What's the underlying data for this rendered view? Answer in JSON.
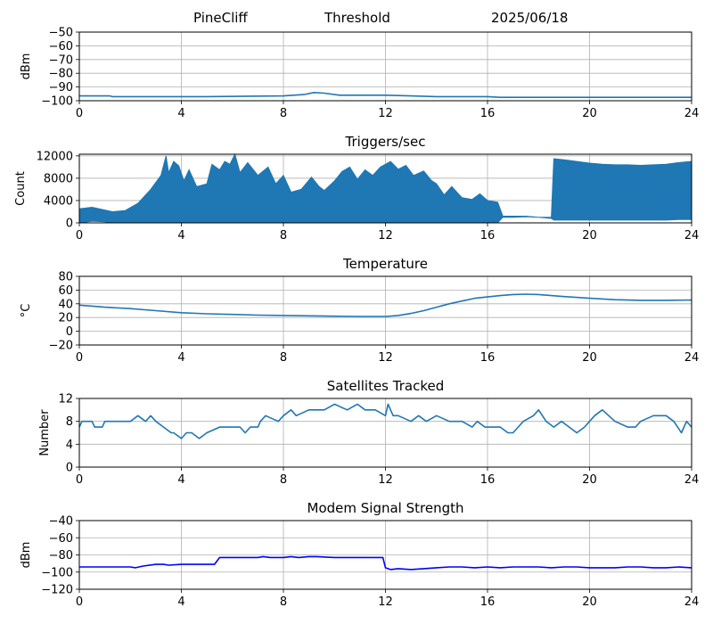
{
  "header": {
    "station": "PineCliff",
    "mode": "Threshold",
    "date": "2025/06/18"
  },
  "chart_data": [
    {
      "id": "threshold",
      "type": "line",
      "title": "",
      "xlabel": "",
      "ylabel": "dBm",
      "xlim": [
        0,
        24
      ],
      "ylim": [
        -100,
        -50
      ],
      "xticks": [
        "0",
        "4",
        "8",
        "12",
        "16",
        "20",
        "24"
      ],
      "yticks": [
        "−50",
        "−60",
        "−70",
        "−80",
        "−90",
        "−100"
      ],
      "grid": true,
      "color": "#1f77b4",
      "series": [
        {
          "x": [
            0,
            1.2,
            1.3,
            4,
            5,
            8,
            8.8,
            9.2,
            9.6,
            10.2,
            11,
            12,
            13,
            14,
            15,
            16,
            16.5,
            18.5,
            20,
            22,
            24
          ],
          "y": [
            -96.5,
            -96.5,
            -97,
            -97,
            -97,
            -96.5,
            -95.5,
            -94,
            -94.5,
            -96,
            -96,
            -96,
            -96.5,
            -97,
            -97,
            -97,
            -97.5,
            -97.5,
            -97.5,
            -97.5,
            -97.5
          ]
        }
      ]
    },
    {
      "id": "triggers",
      "type": "line",
      "title": "Triggers/sec",
      "xlabel": "",
      "ylabel": "Count",
      "xlim": [
        0,
        24
      ],
      "ylim": [
        0,
        12300
      ],
      "xticks": [
        "0",
        "4",
        "8",
        "12",
        "16",
        "20",
        "24"
      ],
      "yticks": [
        "0",
        "4000",
        "8000",
        "12000"
      ],
      "grid": true,
      "color": "#1f77b4",
      "series": [
        {
          "x": [
            0,
            0.5,
            1.0,
            1.3,
            1.8,
            2.3,
            2.8,
            3.2,
            3.4,
            3.5,
            3.7,
            3.9,
            4.1,
            4.3,
            4.6,
            5.0,
            5.2,
            5.5,
            5.7,
            5.9,
            6.1,
            6.3,
            6.6,
            7.0,
            7.4,
            7.7,
            8.0,
            8.3,
            8.7,
            9.1,
            9.4,
            9.6,
            10.0,
            10.3,
            10.6,
            10.9,
            11.2,
            11.5,
            11.8,
            12.2,
            12.5,
            12.8,
            13.1,
            13.5,
            13.8,
            14.0,
            14.3,
            14.6,
            15.0,
            15.4,
            15.7,
            16.0,
            16.4,
            16.6,
            17.0,
            17.5,
            18.0,
            18.5,
            18.6,
            19.0,
            19.5,
            20.0,
            20.5,
            21.0,
            21.5,
            22.0,
            22.5,
            23.0,
            23.5,
            24.0
          ],
          "ymax": [
            2500,
            2800,
            2300,
            2000,
            2200,
            3500,
            6000,
            8500,
            12000,
            9000,
            11000,
            10200,
            7500,
            9500,
            6500,
            7000,
            10500,
            9500,
            11000,
            10500,
            12300,
            9000,
            10800,
            8500,
            10000,
            7000,
            8500,
            5500,
            6000,
            8200,
            6500,
            5800,
            7500,
            9200,
            10000,
            7800,
            9500,
            8500,
            10000,
            11000,
            9600,
            10300,
            8500,
            9300,
            7600,
            7000,
            5000,
            6500,
            4500,
            4200,
            5200,
            4000,
            3700,
            1200,
            1200,
            1200,
            1000,
            1000,
            11500,
            11300,
            11000,
            10700,
            10500,
            10400,
            10400,
            10300,
            10400,
            10500,
            10800,
            11000
          ],
          "ymin": [
            0,
            300,
            200,
            0,
            0,
            0,
            0,
            0,
            0,
            0,
            0,
            0,
            0,
            0,
            0,
            0,
            0,
            0,
            0,
            0,
            0,
            0,
            0,
            0,
            0,
            0,
            0,
            0,
            0,
            0,
            0,
            0,
            0,
            0,
            0,
            0,
            0,
            0,
            0,
            0,
            0,
            0,
            0,
            0,
            0,
            0,
            0,
            0,
            0,
            0,
            0,
            0,
            0,
            1000,
            1000,
            1100,
            1000,
            800,
            500,
            500,
            500,
            500,
            500,
            500,
            500,
            500,
            500,
            500,
            600,
            600
          ]
        }
      ]
    },
    {
      "id": "temperature",
      "type": "line",
      "title": "Temperature",
      "xlabel": "",
      "ylabel": "°C",
      "xlim": [
        0,
        24
      ],
      "ylim": [
        -20,
        80
      ],
      "xticks": [
        "0",
        "4",
        "8",
        "12",
        "16",
        "20",
        "24"
      ],
      "yticks": [
        "−20",
        "0",
        "20",
        "40",
        "60",
        "80"
      ],
      "grid": true,
      "color": "#1f77b4",
      "series": [
        {
          "x": [
            0,
            1,
            2,
            3,
            4,
            5,
            6,
            7,
            8,
            9,
            10,
            11,
            12,
            12.5,
            13,
            13.5,
            14,
            14.5,
            15,
            15.5,
            16,
            16.5,
            17,
            17.5,
            18,
            18.5,
            19,
            20,
            21,
            22,
            23,
            24
          ],
          "y": [
            38,
            35,
            33,
            30,
            27,
            25.5,
            24.5,
            23.5,
            23,
            22.5,
            22,
            21.5,
            21.5,
            23,
            26,
            30,
            35,
            40,
            44,
            48,
            50,
            52,
            53.5,
            54,
            53.5,
            52,
            50.5,
            48,
            46,
            45,
            45,
            45.5
          ]
        }
      ]
    },
    {
      "id": "satellites",
      "type": "line",
      "title": "Satellites Tracked",
      "xlabel": "",
      "ylabel": "Number",
      "xlim": [
        0,
        24
      ],
      "ylim": [
        0,
        12
      ],
      "xticks": [
        "0",
        "4",
        "8",
        "12",
        "16",
        "20",
        "24"
      ],
      "yticks": [
        "0",
        "4",
        "8",
        "12"
      ],
      "grid": true,
      "color": "#1f77b4",
      "series": [
        {
          "x": [
            0,
            0.1,
            0.5,
            0.6,
            0.9,
            1.0,
            2.0,
            2.3,
            2.6,
            2.8,
            3.0,
            3.3,
            3.6,
            3.7,
            4.0,
            4.2,
            4.4,
            4.7,
            5.0,
            5.5,
            6.0,
            6.3,
            6.5,
            6.7,
            7.0,
            7.1,
            7.3,
            7.8,
            8.0,
            8.3,
            8.5,
            9.0,
            9.6,
            10.0,
            10.5,
            10.9,
            11.2,
            11.6,
            12.0,
            12.1,
            12.3,
            12.5,
            13.0,
            13.3,
            13.6,
            14.0,
            14.5,
            15.0,
            15.4,
            15.6,
            15.9,
            16.5,
            16.8,
            17.0,
            17.2,
            17.4,
            17.8,
            18.0,
            18.3,
            18.6,
            18.9,
            19.2,
            19.5,
            19.8,
            20.0,
            20.2,
            20.5,
            21.0,
            21.5,
            21.8,
            22.0,
            22.5,
            23.0,
            23.3,
            23.6,
            23.8,
            24.0
          ],
          "y": [
            7,
            8,
            8,
            7,
            7,
            8,
            8,
            9,
            8,
            9,
            8,
            7,
            6,
            6,
            5,
            6,
            6,
            5,
            6,
            7,
            7,
            7,
            6,
            7,
            7,
            8,
            9,
            8,
            9,
            10,
            9,
            10,
            10,
            11,
            10,
            11,
            10,
            10,
            9,
            11,
            9,
            9,
            8,
            9,
            8,
            9,
            8,
            8,
            7,
            8,
            7,
            7,
            6,
            6,
            7,
            8,
            9,
            10,
            8,
            7,
            8,
            7,
            6,
            7,
            8,
            9,
            10,
            8,
            7,
            7,
            8,
            9,
            9,
            8,
            6,
            8,
            7
          ]
        }
      ]
    },
    {
      "id": "modem",
      "type": "line",
      "title": "Modem Signal Strength",
      "xlabel": "",
      "ylabel": "dBm",
      "xlim": [
        0,
        24
      ],
      "ylim": [
        -120,
        -40
      ],
      "xticks": [
        "0",
        "4",
        "8",
        "12",
        "16",
        "20",
        "24"
      ],
      "yticks": [
        "−40",
        "−60",
        "−80",
        "−100",
        "−120"
      ],
      "grid": true,
      "color": "#0000ff",
      "series": [
        {
          "x": [
            0,
            2.0,
            2.2,
            2.5,
            3.0,
            3.3,
            3.5,
            4.0,
            5.3,
            5.5,
            6.0,
            7.0,
            7.2,
            7.5,
            8.0,
            8.3,
            8.6,
            9.0,
            9.3,
            10.0,
            11.0,
            11.9,
            12.0,
            12.2,
            12.5,
            13.0,
            13.5,
            14.0,
            14.5,
            15.0,
            15.5,
            16.0,
            16.5,
            17.0,
            18.0,
            18.5,
            19.0,
            19.5,
            20.0,
            21.0,
            21.5,
            22.0,
            22.5,
            23.0,
            23.5,
            24.0
          ],
          "y": [
            -94,
            -94,
            -95,
            -93,
            -91,
            -91,
            -92,
            -91,
            -91,
            -83,
            -83,
            -83,
            -82,
            -83,
            -83,
            -82,
            -83,
            -82,
            -82,
            -83,
            -83,
            -83,
            -95,
            -97,
            -96,
            -97,
            -96,
            -95,
            -94,
            -94,
            -95,
            -94,
            -95,
            -94,
            -94,
            -95,
            -94,
            -94,
            -95,
            -95,
            -94,
            -94,
            -95,
            -95,
            -94,
            -95
          ]
        }
      ]
    }
  ]
}
